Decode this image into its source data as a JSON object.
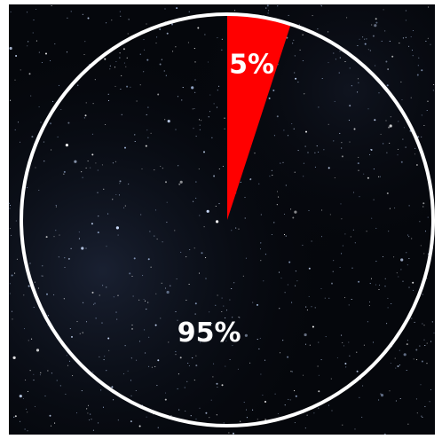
{
  "chart_data": {
    "type": "pie",
    "slices": [
      {
        "label": "5%",
        "value": 5,
        "color": "#ff0000"
      },
      {
        "label": "95%",
        "value": 95,
        "color": "transparent"
      }
    ],
    "start_angle_deg": 0,
    "direction": "clockwise",
    "outline_color": "#ffffff",
    "background": "starfield",
    "background_color": "#05070c"
  }
}
